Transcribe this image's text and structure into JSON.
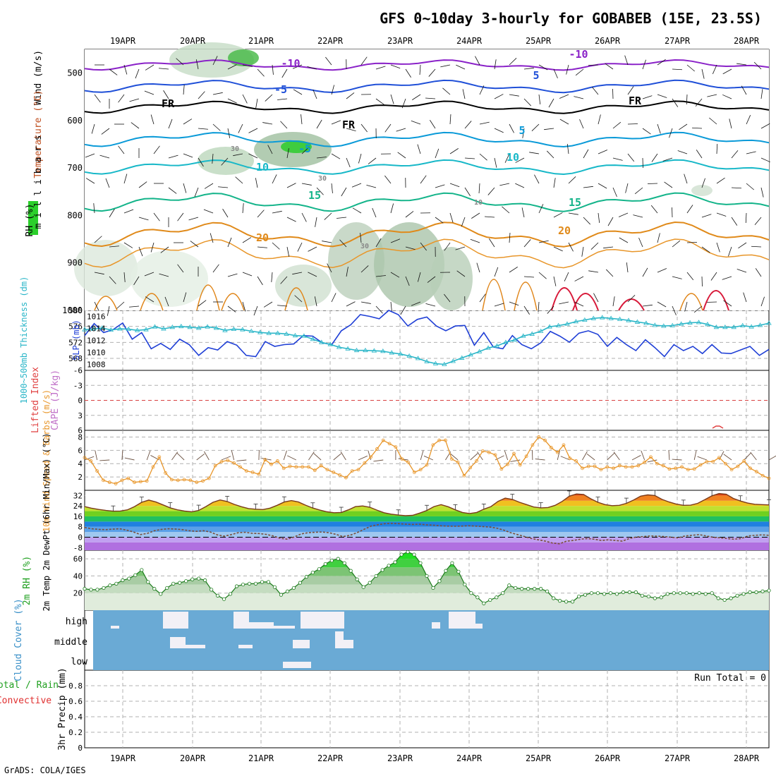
{
  "title": "GFS 0~10day 3-hourly for GOBABEB (15E, 23.5S)",
  "footer": "GrADS: COLA/IGES",
  "colors": {
    "grid": "#b0b0b0",
    "blue_line": "#1f3fd6",
    "cyan_line": "#2ab6c8",
    "orange": "#e8962a",
    "green_fill": "#3ccf3c",
    "cloud_bg": "#6aaad5",
    "cloud_fill": "#f2f0f6",
    "rh_line": "#1a7a1a",
    "dewpt": "#7a4e3a"
  },
  "chart_data": [
    {
      "type": "contour",
      "panel": "vertical-profile",
      "xlabels": [
        "19APR",
        "20APR",
        "21APR",
        "22APR",
        "23APR",
        "24APR",
        "25APR",
        "26APR",
        "27APR",
        "28APR"
      ],
      "ylabel_parts": [
        "RH (%)",
        "Temperature (°C)",
        "Wind (m/s)",
        "m i l l i b a r s"
      ],
      "yticks": [
        500,
        600,
        700,
        800,
        900,
        1000
      ],
      "ylim": [
        450,
        1000
      ],
      "contour_labels": [
        {
          "text": "-10",
          "color": "#8a22c8",
          "level": "~485mb"
        },
        {
          "text": "-10",
          "color": "#8a22c8",
          "level": "~480mb"
        },
        {
          "text": "-5",
          "color": "#2050d8",
          "level": "~530mb"
        },
        {
          "text": "5",
          "color": "#2050d8",
          "level": "~510mb"
        },
        {
          "text": "FR",
          "color": "#000000",
          "level": "~570mb"
        },
        {
          "text": "FR",
          "color": "#000000",
          "level": "~610mb"
        },
        {
          "text": "FR",
          "color": "#000000",
          "level": "~565mb"
        },
        {
          "text": "-5",
          "color": "#0a9ad8",
          "level": "~665mb"
        },
        {
          "text": "5",
          "color": "#0a9ad8",
          "level": "~625mb"
        },
        {
          "text": "10",
          "color": "#18b8c8",
          "level": "~700mb"
        },
        {
          "text": "10",
          "color": "#18b8c8",
          "level": "~680mb"
        },
        {
          "text": "15",
          "color": "#14b48a",
          "level": "~765mb"
        },
        {
          "text": "15",
          "color": "#14b48a",
          "level": "~780mb"
        },
        {
          "text": "20",
          "color": "#e08a1a",
          "level": "~855mb"
        },
        {
          "text": "20",
          "color": "#e08a1a",
          "level": "~825mb"
        },
        {
          "text": "30",
          "color": "#888888",
          "level": "~660mb"
        },
        {
          "text": "30",
          "color": "#888888",
          "level": "~725mb"
        },
        {
          "text": "30",
          "color": "#888888",
          "level": "~870mb"
        },
        {
          "text": "10",
          "color": "#888888",
          "level": "~775mb"
        }
      ]
    },
    {
      "type": "line",
      "panel": "thickness-slp",
      "ylabel_left": "1000~500mb Thickness (dm)",
      "ylabel_right": "SLP (mb)",
      "yticks_left": [
        568,
        572,
        576,
        580
      ],
      "yticks_right": [
        1008,
        1010,
        1012,
        1014,
        1016
      ],
      "ylim_left": [
        565,
        580
      ],
      "series": [
        {
          "name": "SLP (mb)",
          "axis": "right",
          "color": "#1f3fd6",
          "values": [
            1012.8,
            1014.8,
            1013.3,
            1013.8,
            1014.9,
            1012.2,
            1013.3,
            1010.6,
            1011.5,
            1010.5,
            1012.2,
            1011.3,
            1009.5,
            1010.8,
            1010.4,
            1011.8,
            1011.2,
            1009.5,
            1009.3,
            1011.8,
            1011.0,
            1011.3,
            1011.4,
            1012.8,
            1012.7,
            1011.6,
            1011.3,
            1013.6,
            1014.6,
            1016.3,
            1016.0,
            1015.6,
            1017.0,
            1016.3,
            1014.4,
            1015.5,
            1015.9,
            1014.4,
            1013.6,
            1014.4,
            1014.5,
            1011.2,
            1013.3,
            1010.9,
            1010.6,
            1012.8,
            1011.3,
            1010.6,
            1011.6,
            1013.5,
            1012.7,
            1011.7,
            1013.2,
            1013.6,
            1013.0,
            1011.0,
            1012.5,
            1011.3,
            1010.3,
            1012.1,
            1010.8,
            1009.3,
            1011.3,
            1010.3,
            1011.0,
            1009.8,
            1011.3,
            1009.9,
            1009.8,
            1010.4,
            1011.0,
            1009.5,
            1010.5
          ]
        },
        {
          "name": "1000~500mb Thickness (dm)",
          "axis": "left",
          "color": "#2ab6c8",
          "values": [
            575.2,
            575.3,
            575.6,
            575.1,
            575.4,
            575.3,
            575.0,
            575.2,
            575.9,
            575.4,
            575.8,
            576.0,
            575.8,
            575.6,
            575.9,
            575.6,
            575.0,
            575.3,
            575.2,
            574.8,
            574.5,
            574.3,
            574.3,
            574.1,
            573.7,
            573.6,
            572.8,
            572.0,
            571.5,
            570.8,
            570.4,
            570.0,
            570.0,
            569.9,
            569.8,
            569.4,
            569.1,
            568.6,
            568.0,
            567.2,
            566.7,
            566.5,
            567.3,
            568.1,
            568.9,
            569.7,
            570.6,
            571.1,
            572.0,
            572.6,
            573.6,
            574.1,
            574.8,
            575.9,
            576.2,
            576.6,
            577.2,
            577.6,
            578.0,
            578.2,
            578.0,
            577.8,
            577.5,
            577.1,
            576.8,
            576.3,
            576.1,
            576.2,
            576.6,
            576.9,
            577.0,
            576.5,
            575.8,
            575.8,
            575.8,
            576.2,
            575.9,
            576.3,
            576.8
          ]
        }
      ]
    },
    {
      "type": "line",
      "panel": "stability",
      "ylabel_left": "Lifted Index",
      "ylabel_right": "CAPE (J/kg)",
      "yticks": [
        -6,
        -3,
        0,
        3,
        6
      ],
      "ylim": [
        -6,
        6
      ]
    },
    {
      "type": "line",
      "panel": "wind10m",
      "ylabel": "10m Wind Speed & Barbs (m/s)",
      "yticks": [
        2,
        4,
        6,
        8
      ],
      "ylim": [
        0,
        9
      ],
      "series": [
        {
          "name": "10m Wind Speed",
          "color": "#e8962a",
          "values": [
            4.9,
            4.4,
            2.9,
            1.5,
            1.2,
            1.0,
            1.5,
            1.8,
            1.2,
            1.3,
            1.4,
            3.5,
            5.0,
            2.6,
            1.6,
            1.5,
            1.6,
            1.5,
            1.2,
            1.4,
            1.8,
            3.7,
            4.3,
            4.5,
            4.1,
            3.5,
            2.9,
            2.7,
            2.4,
            4.6,
            3.9,
            4.4,
            3.3,
            3.6,
            3.5,
            3.5,
            3.5,
            3.0,
            3.7,
            3.1,
            2.7,
            2.3,
            1.9,
            2.9,
            3.1,
            4.1,
            5.0,
            6.2,
            7.5,
            7.0,
            6.5,
            4.7,
            4.2,
            2.7,
            3.1,
            3.8,
            6.8,
            7.5,
            7.5,
            4.7,
            4.2,
            2.2,
            3.4,
            4.4,
            5.9,
            5.7,
            5.3,
            3.2,
            3.9,
            5.5,
            3.8,
            5.1,
            6.8,
            8.0,
            7.5,
            6.4,
            5.7,
            6.8,
            4.8,
            4.4,
            3.3,
            3.6,
            3.6,
            3.1,
            3.5,
            3.3,
            3.7,
            3.5,
            3.5,
            3.7,
            4.2,
            5.0,
            4.0,
            3.7,
            3.2,
            3.3,
            3.5,
            3.1,
            3.2,
            3.8,
            4.3,
            4.3,
            4.9,
            4.0,
            3.1,
            3.6,
            4.4,
            3.3,
            2.8,
            2.2,
            1.8
          ]
        }
      ]
    },
    {
      "type": "area",
      "panel": "temperature",
      "ylabel": "2m Temp 2m DewPt (6hr Min/Max) (°C)",
      "yticks": [
        -8,
        0,
        8,
        16,
        24,
        32
      ],
      "ylim": [
        -10,
        36
      ],
      "series": [
        {
          "name": "2m Temp",
          "color": "#7a3a1a",
          "values": [
            23.5,
            22.2,
            21.3,
            20.5,
            20.0,
            20.1,
            21.0,
            23.5,
            26.8,
            28.5,
            27.0,
            24.8,
            22.5,
            21.0,
            20.1,
            19.5,
            20.6,
            23.5,
            26.8,
            28.6,
            27.4,
            25.2,
            23.4,
            22.0,
            21.5,
            21.2,
            22.3,
            24.5,
            27.0,
            28.1,
            27.0,
            24.6,
            22.4,
            20.8,
            19.5,
            18.8,
            19.0,
            21.0,
            23.5,
            24.0,
            23.0,
            20.8,
            18.8,
            17.7,
            17.0,
            16.5,
            16.8,
            18.5,
            20.5,
            23.5,
            25.0,
            23.4,
            21.0,
            19.0,
            18.2,
            19.0,
            21.5,
            23.5,
            27.5,
            30.0,
            29.0,
            26.8,
            25.0,
            23.2,
            22.5,
            22.8,
            24.5,
            27.5,
            31.5,
            33.2,
            32.8,
            29.5,
            26.8,
            25.0,
            24.2,
            24.5,
            26.0,
            28.5,
            31.5,
            32.5,
            32.0,
            29.0,
            27.0,
            25.4,
            24.5,
            24.6,
            26.0,
            28.8,
            31.8,
            33.5,
            33.0,
            29.8,
            27.8,
            26.2,
            25.3,
            25.0,
            24.8
          ]
        },
        {
          "name": "2m DewPt",
          "color": "#7a4e3a",
          "values": [
            7.5,
            6.5,
            6.0,
            5.8,
            6.2,
            6.5,
            5.5,
            4.0,
            2.0,
            3.0,
            5.0,
            6.0,
            6.5,
            6.3,
            5.8,
            5.0,
            4.5,
            5.0,
            4.0,
            1.8,
            0.8,
            2.0,
            3.5,
            3.8,
            3.0,
            2.8,
            2.2,
            1.0,
            -0.8,
            -1.5,
            0.2,
            2.5,
            3.5,
            3.8,
            4.0,
            3.5,
            2.2,
            0.5,
            1.5,
            3.5,
            6.0,
            8.5,
            9.6,
            10.4,
            10.6,
            10.4,
            10.0,
            9.8,
            10.0,
            9.5,
            9.2,
            8.8,
            8.5,
            8.4,
            8.5,
            8.8,
            8.5,
            8.2,
            7.8,
            7.0,
            5.5,
            3.5,
            2.0,
            0.5,
            -1.0,
            -2.0,
            -3.0,
            -4.5,
            -5.0,
            -3.0,
            -2.5,
            -1.5,
            -1.0,
            -1.5,
            -2.5,
            -2.0,
            -2.5,
            -3.0,
            -1.0,
            0.2,
            0.5,
            1.0,
            0.8,
            0.5,
            0.0,
            -0.5,
            1.0,
            1.5,
            2.0,
            1.0,
            0.0,
            -0.5,
            -1.0,
            -1.5,
            -1.0,
            1.0,
            1.5,
            1.8,
            1.5
          ]
        }
      ]
    },
    {
      "type": "area",
      "panel": "rh2m",
      "ylabel": "2m RH (%)",
      "yticks": [
        20,
        40,
        60
      ],
      "ylim": [
        0,
        70
      ],
      "series": [
        {
          "name": "2m RH",
          "color": "#1a7a1a",
          "values": [
            25,
            24,
            24,
            26,
            29,
            31,
            35,
            37,
            41,
            47,
            33,
            25,
            19,
            26,
            31,
            32,
            34,
            36,
            37,
            35,
            24,
            17,
            13,
            19,
            28,
            30,
            31,
            31,
            33,
            33,
            27,
            18,
            22,
            26,
            32,
            39,
            44,
            48,
            54,
            58,
            60,
            55,
            46,
            36,
            27,
            32,
            40,
            47,
            52,
            56,
            65,
            68,
            65,
            55,
            40,
            26,
            34,
            46,
            55,
            45,
            30,
            20,
            15,
            8,
            12,
            15,
            20,
            29,
            26,
            25,
            25,
            25,
            25,
            22,
            14,
            11,
            10,
            10,
            16,
            18,
            20,
            20,
            19,
            20,
            19,
            21,
            21,
            21,
            17,
            16,
            14,
            15,
            19,
            20,
            20,
            20,
            19,
            20,
            19,
            20,
            14,
            12,
            14,
            17,
            19,
            21,
            21,
            22,
            23
          ]
        }
      ]
    },
    {
      "type": "heatmap",
      "panel": "cloud",
      "ylabel": "Cloud Cover (%)",
      "rows": [
        "high",
        "middle",
        "low"
      ]
    },
    {
      "type": "bar",
      "panel": "precip",
      "ylabel_left": "Total / Rain Convective",
      "ylabel": "3hr Precip (mm)",
      "yticks": [
        0,
        0.2,
        0.4,
        0.6,
        0.8
      ],
      "ylim": [
        0,
        1
      ],
      "annotation": "Run Total = 0"
    }
  ]
}
